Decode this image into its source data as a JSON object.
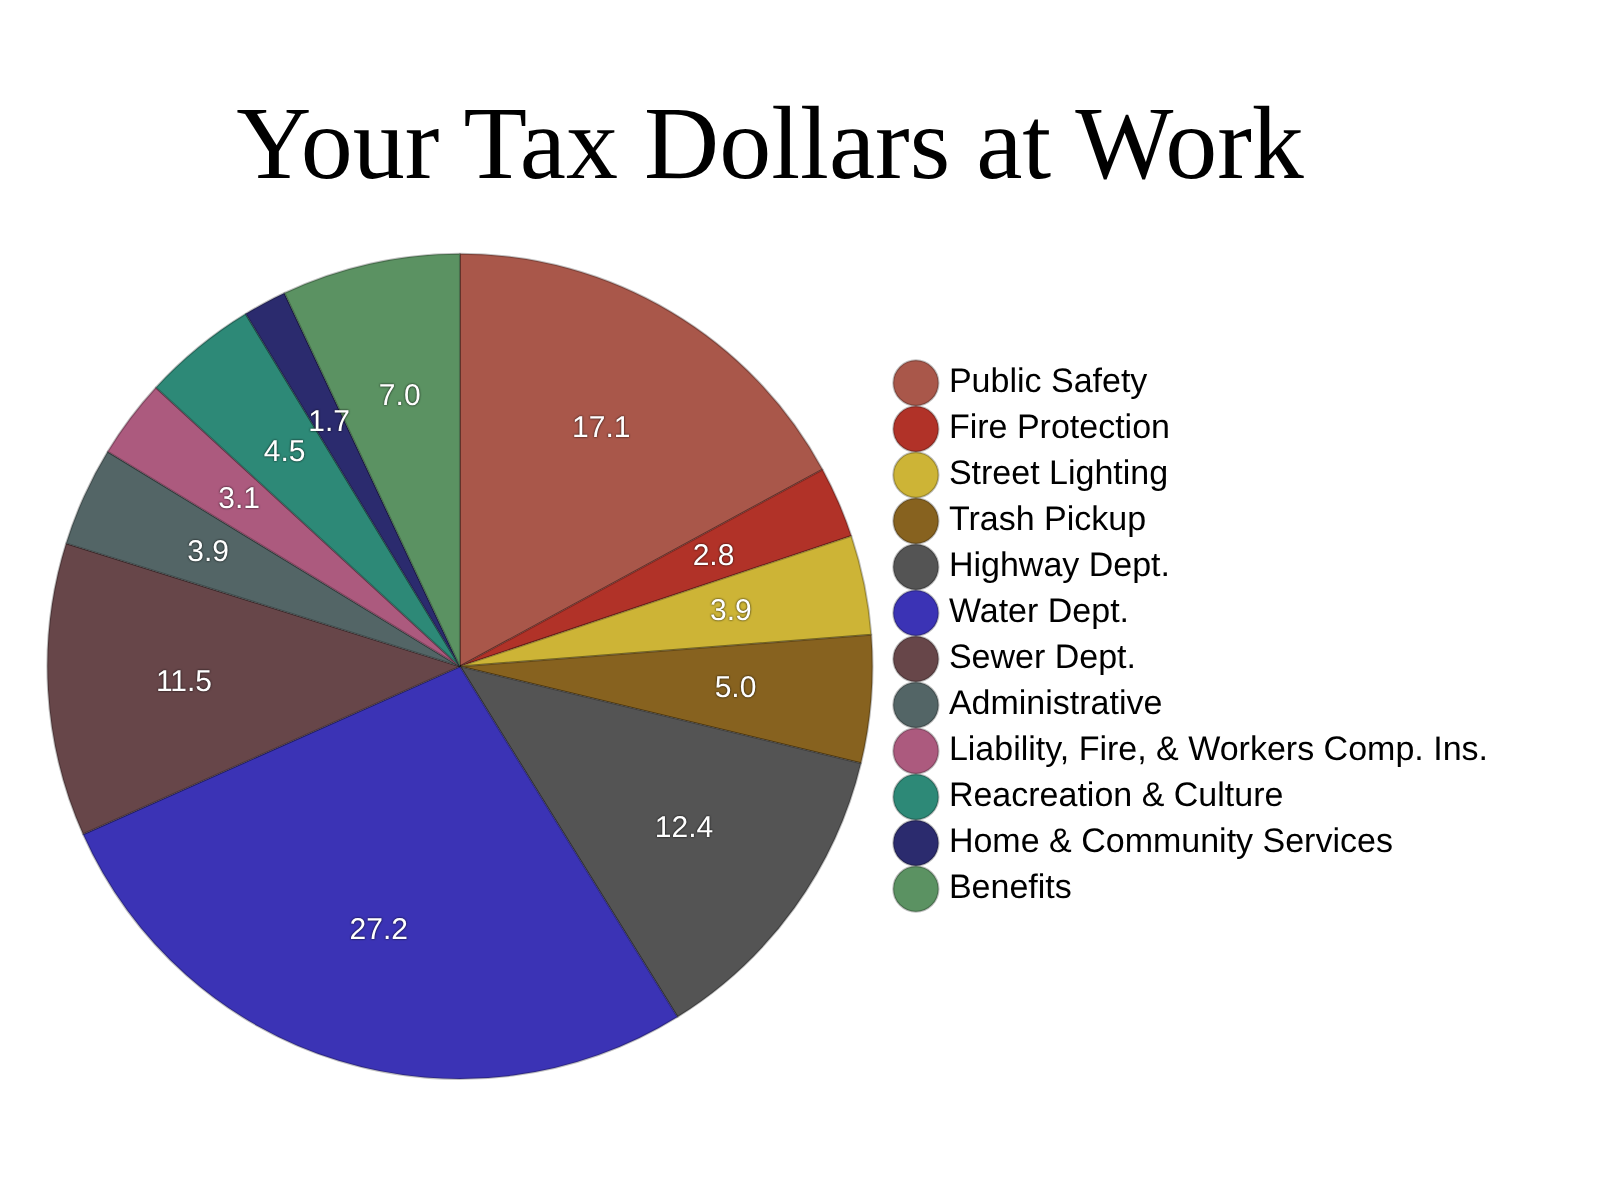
{
  "chart_data": {
    "type": "pie",
    "title": "Your Tax Dollars at Work",
    "categories": [
      "Public Safety",
      "Fire Protection",
      "Street Lighting",
      "Trash Pickup",
      "Highway Dept.",
      "Water Dept.",
      "Sewer Dept.",
      "Administrative",
      "Liability, Fire, & Workers Comp. Ins.",
      "Reacreation & Culture",
      "Home & Community Services",
      "Benefits"
    ],
    "values": [
      17.1,
      2.8,
      3.9,
      5.0,
      12.4,
      27.2,
      11.5,
      3.9,
      3.1,
      4.5,
      1.7,
      7.0
    ],
    "value_labels": [
      "17.1",
      "2.8",
      "3.9",
      "5.0",
      "12.4",
      "27.2",
      "11.5",
      "3.9",
      "3.1",
      "4.5",
      "1.7",
      "7.0"
    ],
    "colors": [
      "#a9574a",
      "#b13228",
      "#cdb436",
      "#87621f",
      "#545454",
      "#3b33b5",
      "#674649",
      "#536566",
      "#ac5a7e",
      "#2d8977",
      "#2b2b6e",
      "#5b9262"
    ],
    "legend": "right"
  }
}
